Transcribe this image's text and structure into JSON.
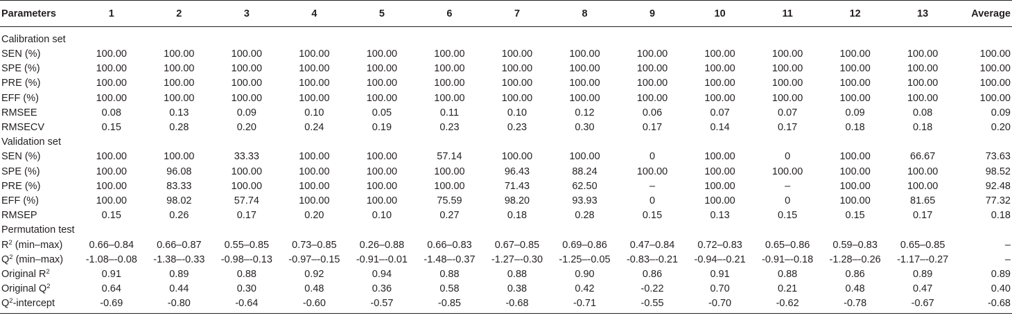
{
  "table": {
    "header": [
      "Parameters",
      "1",
      "2",
      "3",
      "4",
      "5",
      "6",
      "7",
      "8",
      "9",
      "10",
      "11",
      "12",
      "13",
      "Average"
    ],
    "sections": [
      {
        "title": "Calibration set",
        "rows": [
          {
            "label": "SEN (%)",
            "values": [
              "100.00",
              "100.00",
              "100.00",
              "100.00",
              "100.00",
              "100.00",
              "100.00",
              "100.00",
              "100.00",
              "100.00",
              "100.00",
              "100.00",
              "100.00",
              "100.00"
            ]
          },
          {
            "label": "SPE (%)",
            "values": [
              "100.00",
              "100.00",
              "100.00",
              "100.00",
              "100.00",
              "100.00",
              "100.00",
              "100.00",
              "100.00",
              "100.00",
              "100.00",
              "100.00",
              "100.00",
              "100.00"
            ]
          },
          {
            "label": "PRE (%)",
            "values": [
              "100.00",
              "100.00",
              "100.00",
              "100.00",
              "100.00",
              "100.00",
              "100.00",
              "100.00",
              "100.00",
              "100.00",
              "100.00",
              "100.00",
              "100.00",
              "100.00"
            ]
          },
          {
            "label": "EFF (%)",
            "values": [
              "100.00",
              "100.00",
              "100.00",
              "100.00",
              "100.00",
              "100.00",
              "100.00",
              "100.00",
              "100.00",
              "100.00",
              "100.00",
              "100.00",
              "100.00",
              "100.00"
            ]
          },
          {
            "label": "RMSEE",
            "values": [
              "0.08",
              "0.13",
              "0.09",
              "0.10",
              "0.05",
              "0.11",
              "0.10",
              "0.12",
              "0.06",
              "0.07",
              "0.07",
              "0.09",
              "0.08",
              "0.09"
            ]
          },
          {
            "label": "RMSECV",
            "values": [
              "0.15",
              "0.28",
              "0.20",
              "0.24",
              "0.19",
              "0.23",
              "0.23",
              "0.30",
              "0.17",
              "0.14",
              "0.17",
              "0.18",
              "0.18",
              "0.20"
            ]
          }
        ]
      },
      {
        "title": "Validation set",
        "rows": [
          {
            "label": "SEN (%)",
            "values": [
              "100.00",
              "100.00",
              "33.33",
              "100.00",
              "100.00",
              "57.14",
              "100.00",
              "100.00",
              "0",
              "100.00",
              "0",
              "100.00",
              "66.67",
              "73.63"
            ]
          },
          {
            "label": "SPE (%)",
            "values": [
              "100.00",
              "96.08",
              "100.00",
              "100.00",
              "100.00",
              "100.00",
              "96.43",
              "88.24",
              "100.00",
              "100.00",
              "100.00",
              "100.00",
              "100.00",
              "98.52"
            ]
          },
          {
            "label": "PRE (%)",
            "values": [
              "100.00",
              "83.33",
              "100.00",
              "100.00",
              "100.00",
              "100.00",
              "71.43",
              "62.50",
              "–",
              "100.00",
              "–",
              "100.00",
              "100.00",
              "92.48"
            ]
          },
          {
            "label": "EFF (%)",
            "values": [
              "100.00",
              "98.02",
              "57.74",
              "100.00",
              "100.00",
              "75.59",
              "98.20",
              "93.93",
              "0",
              "100.00",
              "0",
              "100.00",
              "81.65",
              "77.32"
            ]
          },
          {
            "label": "RMSEP",
            "values": [
              "0.15",
              "0.26",
              "0.17",
              "0.20",
              "0.10",
              "0.27",
              "0.18",
              "0.28",
              "0.15",
              "0.13",
              "0.15",
              "0.15",
              "0.17",
              "0.18"
            ]
          }
        ]
      },
      {
        "title": "Permutation test",
        "rows": [
          {
            "label": "R",
            "sup": "2",
            "suffix": " (min–max)",
            "values": [
              "0.66–0.84",
              "0.66–0.87",
              "0.55–0.85",
              "0.73–0.85",
              "0.26–0.88",
              "0.66–0.83",
              "0.67–0.85",
              "0.69–0.86",
              "0.47–0.84",
              "0.72–0.83",
              "0.65–0.86",
              "0.59–0.83",
              "0.65–0.85",
              "–"
            ]
          },
          {
            "label": "Q",
            "sup": "2",
            "suffix": " (min–max)",
            "values": [
              "-1.08–-0.08",
              "-1.38–-0.33",
              "-0.98–-0.13",
              "-0.97–-0.15",
              "-0.91–-0.01",
              "-1.48–-0.37",
              "-1.27–-0.30",
              "-1.25–-0.05",
              "-0.83–-0.21",
              "-0.94–-0.21",
              "-0.91–-0.18",
              "-1.28–-0.26",
              "-1.17–-0.27",
              "–"
            ]
          },
          {
            "label": "Original R",
            "sup": "2",
            "suffix": "",
            "values": [
              "0.91",
              "0.89",
              "0.88",
              "0.92",
              "0.94",
              "0.88",
              "0.88",
              "0.90",
              "0.86",
              "0.91",
              "0.88",
              "0.86",
              "0.89",
              "0.89"
            ]
          },
          {
            "label": "Original Q",
            "sup": "2",
            "suffix": "",
            "values": [
              "0.64",
              "0.44",
              "0.30",
              "0.48",
              "0.36",
              "0.58",
              "0.38",
              "0.42",
              "-0.22",
              "0.70",
              "0.21",
              "0.48",
              "0.47",
              "0.40"
            ]
          },
          {
            "label": "Q",
            "sup": "2",
            "suffix": "-intercept",
            "values": [
              "-0.69",
              "-0.80",
              "-0.64",
              "-0.60",
              "-0.57",
              "-0.85",
              "-0.68",
              "-0.71",
              "-0.55",
              "-0.70",
              "-0.62",
              "-0.78",
              "-0.67",
              "-0.68"
            ]
          }
        ]
      }
    ]
  }
}
